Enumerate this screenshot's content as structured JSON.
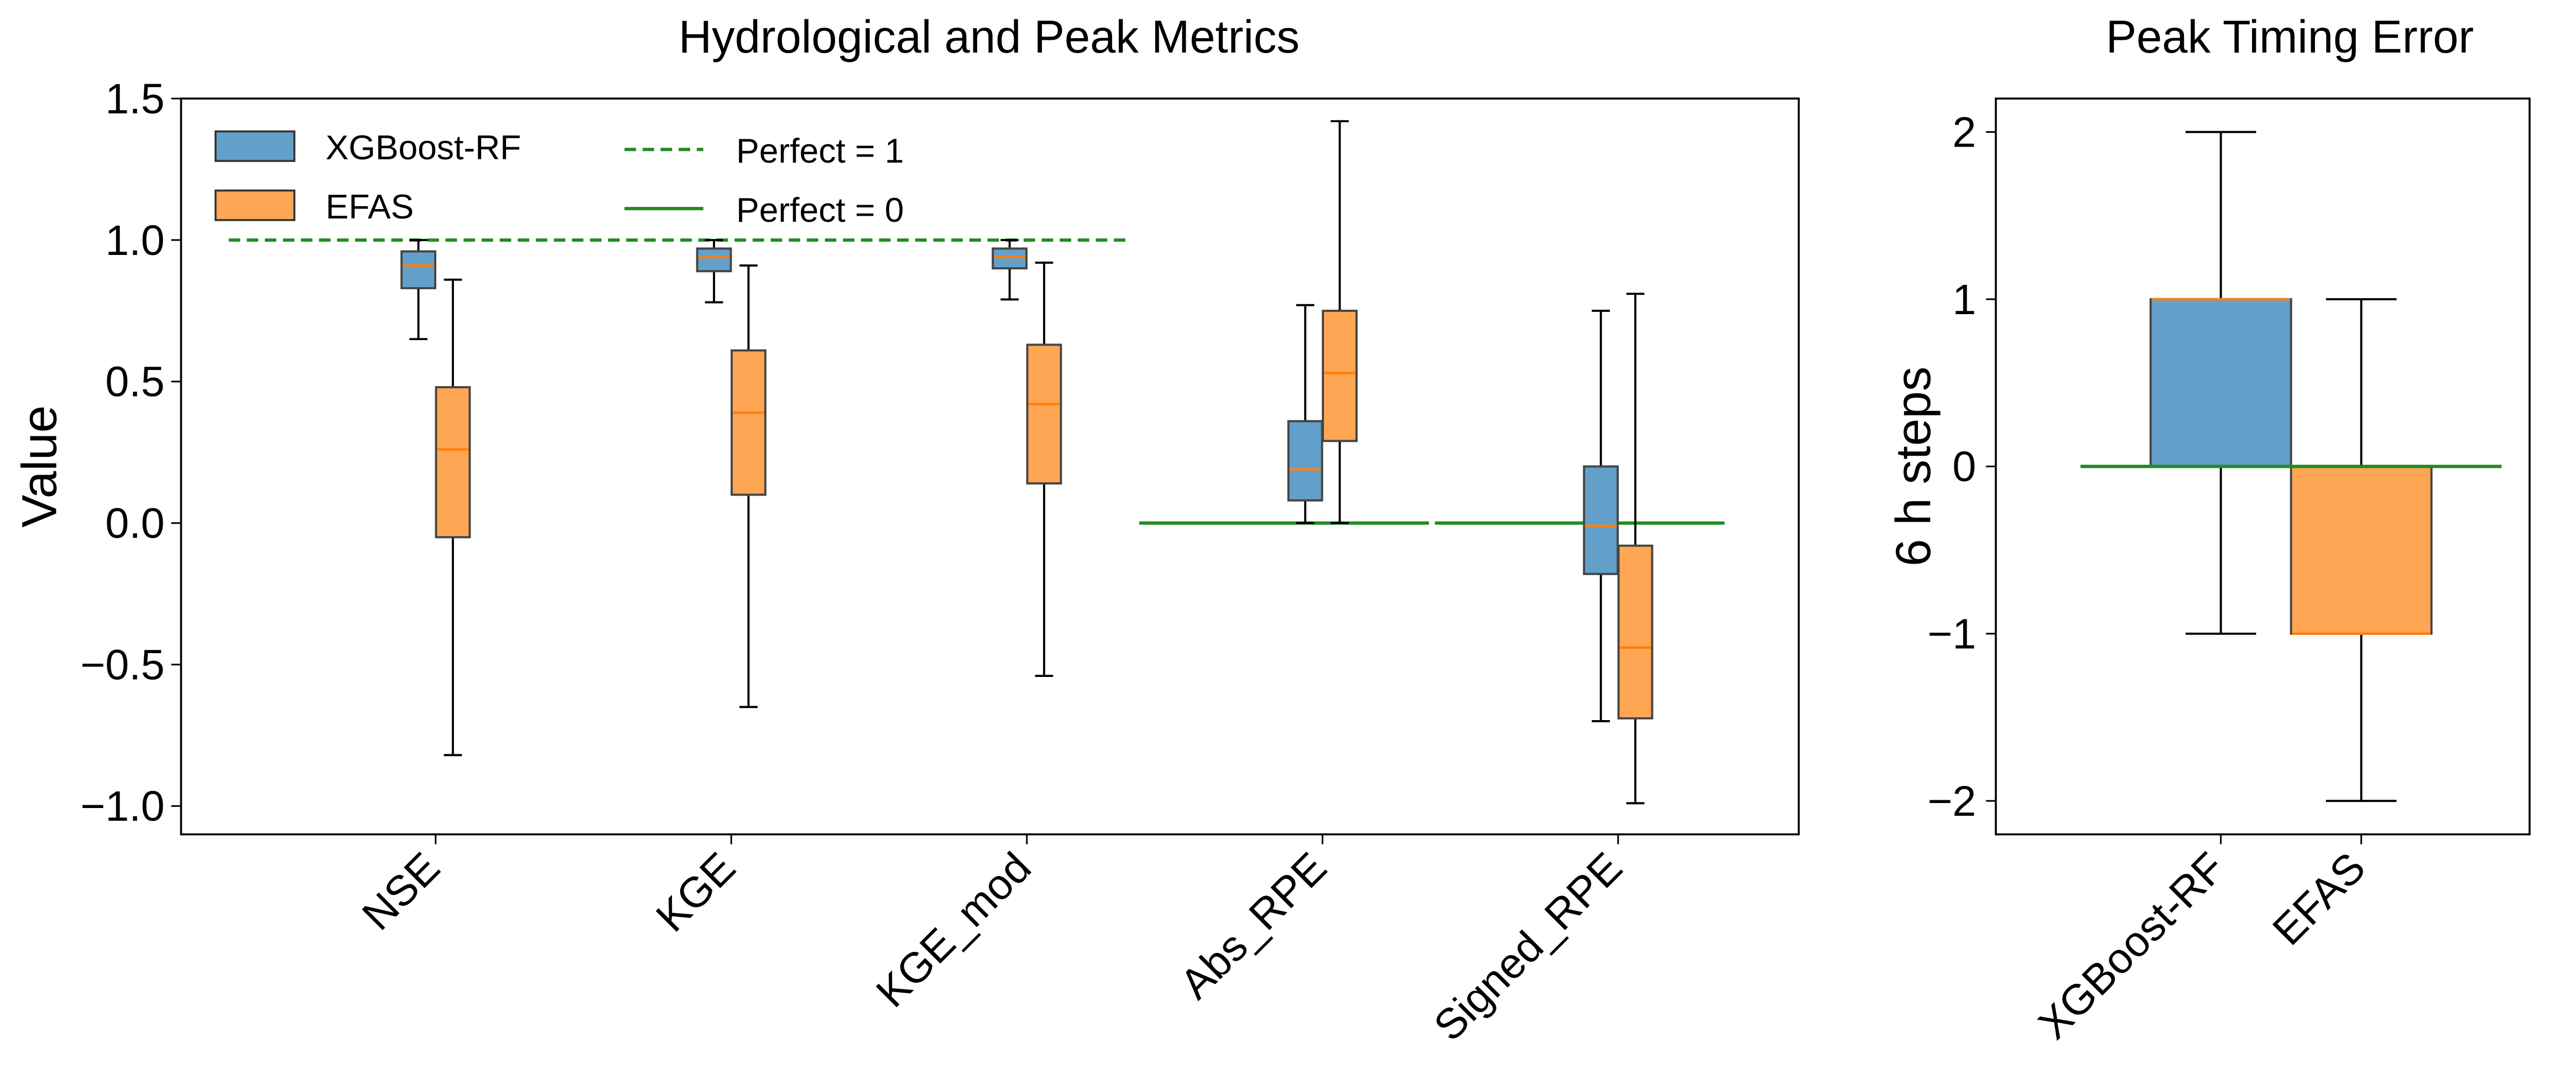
{
  "chart_data": [
    {
      "type": "box",
      "title": "Hydrological and Peak Metrics",
      "xlabel": "",
      "ylabel": "Value",
      "ylim": [
        -1.1,
        1.5
      ],
      "yticks": [
        -1.0,
        -0.5,
        0.0,
        0.5,
        1.0,
        1.5
      ],
      "ytick_labels": [
        "−1.0",
        "−0.5",
        "0.0",
        "0.5",
        "1.0",
        "1.5"
      ],
      "categories": [
        "NSE",
        "KGE",
        "KGE_mod",
        "Abs_RPE",
        "Signed_RPE"
      ],
      "grid": false,
      "legend_placement": "upper-left",
      "series": [
        {
          "name": "XGBoost-RF",
          "color": "#62a0ca",
          "boxes": [
            {
              "whislo": 0.65,
              "q1": 0.83,
              "med": 0.91,
              "q3": 0.96,
              "whishi": 1.0
            },
            {
              "whislo": 0.78,
              "q1": 0.89,
              "med": 0.94,
              "q3": 0.97,
              "whishi": 1.0
            },
            {
              "whislo": 0.79,
              "q1": 0.9,
              "med": 0.94,
              "q3": 0.97,
              "whishi": 1.0
            },
            {
              "whislo": 0.0,
              "q1": 0.08,
              "med": 0.19,
              "q3": 0.36,
              "whishi": 0.77
            },
            {
              "whislo": -0.7,
              "q1": -0.18,
              "med": -0.01,
              "q3": 0.2,
              "whishi": 0.75
            }
          ]
        },
        {
          "name": "EFAS",
          "color": "#ffa654",
          "boxes": [
            {
              "whislo": -0.82,
              "q1": -0.05,
              "med": 0.26,
              "q3": 0.48,
              "whishi": 0.86
            },
            {
              "whislo": -0.65,
              "q1": 0.1,
              "med": 0.39,
              "q3": 0.61,
              "whishi": 0.91
            },
            {
              "whislo": -0.54,
              "q1": 0.14,
              "med": 0.42,
              "q3": 0.63,
              "whishi": 0.92
            },
            {
              "whislo": 0.0,
              "q1": 0.29,
              "med": 0.53,
              "q3": 0.75,
              "whishi": 1.42
            },
            {
              "whislo": -0.99,
              "q1": -0.69,
              "med": -0.44,
              "q3": -0.08,
              "whishi": 0.81
            }
          ]
        }
      ],
      "median_color": "#ff7f0e",
      "reference_lines": [
        {
          "name": "Perfect = 1",
          "y": 1,
          "style": "dashed",
          "color": "#228b22",
          "categories": [
            "NSE",
            "KGE",
            "KGE_mod"
          ]
        },
        {
          "name": "Perfect = 0",
          "y": 0,
          "style": "solid",
          "color": "#228b22",
          "categories": [
            "Abs_RPE"
          ]
        },
        {
          "name": "",
          "y": 0,
          "style": "solid",
          "color": "#228b22",
          "categories": [
            "Signed_RPE"
          ]
        }
      ]
    },
    {
      "type": "box",
      "title": "Peak Timing Error",
      "xlabel": "",
      "ylabel": "6 h steps",
      "ylim": [
        -2.2,
        2.2
      ],
      "yticks": [
        -2,
        -1,
        0,
        1,
        2
      ],
      "ytick_labels": [
        "−2",
        "−1",
        "0",
        "1",
        "2"
      ],
      "categories": [
        "XGBoost-RF",
        "EFAS"
      ],
      "grid": false,
      "boxes": [
        {
          "category": "XGBoost-RF",
          "color": "#62a0ca",
          "whislo": -1,
          "q1": 0,
          "med": 1,
          "q3": 1,
          "whishi": 2
        },
        {
          "category": "EFAS",
          "color": "#ffa654",
          "whislo": -2,
          "q1": -1,
          "med": -1,
          "q3": 0,
          "whishi": 1
        }
      ],
      "median_color": "#ff7f0e",
      "reference_lines": [
        {
          "y": 0,
          "style": "solid",
          "color": "#228b22"
        }
      ]
    }
  ]
}
